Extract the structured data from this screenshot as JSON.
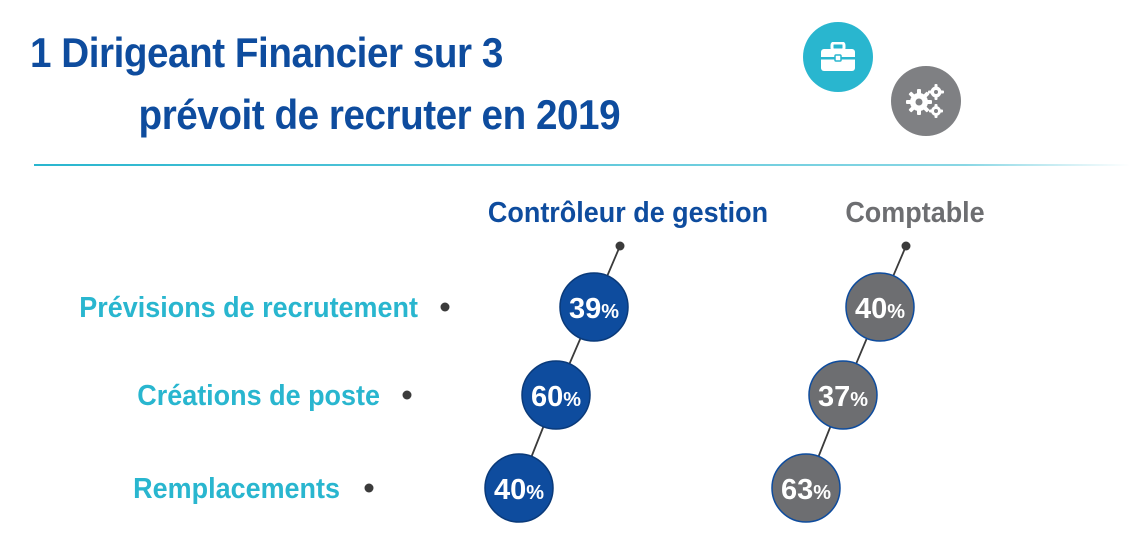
{
  "header": {
    "title_line1": "1 Dirigeant Financier sur 3",
    "title_line2": "prévoit de recruter en 2019",
    "icons": [
      "briefcase-icon",
      "gears-icon"
    ]
  },
  "colors": {
    "title": "#0e4c9e",
    "row_label": "#29b6cf",
    "controleur": "#0e4c9e",
    "comptable": "#6d6e71",
    "accent_icon": "#29b6cf",
    "gray_icon": "#7f8083",
    "line": "#3b3b3b"
  },
  "chart_data": {
    "type": "table",
    "title": "1 Dirigeant Financier sur 3 prévoit de recruter en 2019",
    "categories": [
      "Prévisions de recrutement",
      "Créations de poste",
      "Remplacements"
    ],
    "series": [
      {
        "name": "Contrôleur de gestion",
        "values": [
          39,
          60,
          40
        ],
        "color": "#0e4c9e"
      },
      {
        "name": "Comptable",
        "values": [
          40,
          37,
          63
        ],
        "color": "#6d6e71"
      }
    ],
    "unit": "%"
  }
}
